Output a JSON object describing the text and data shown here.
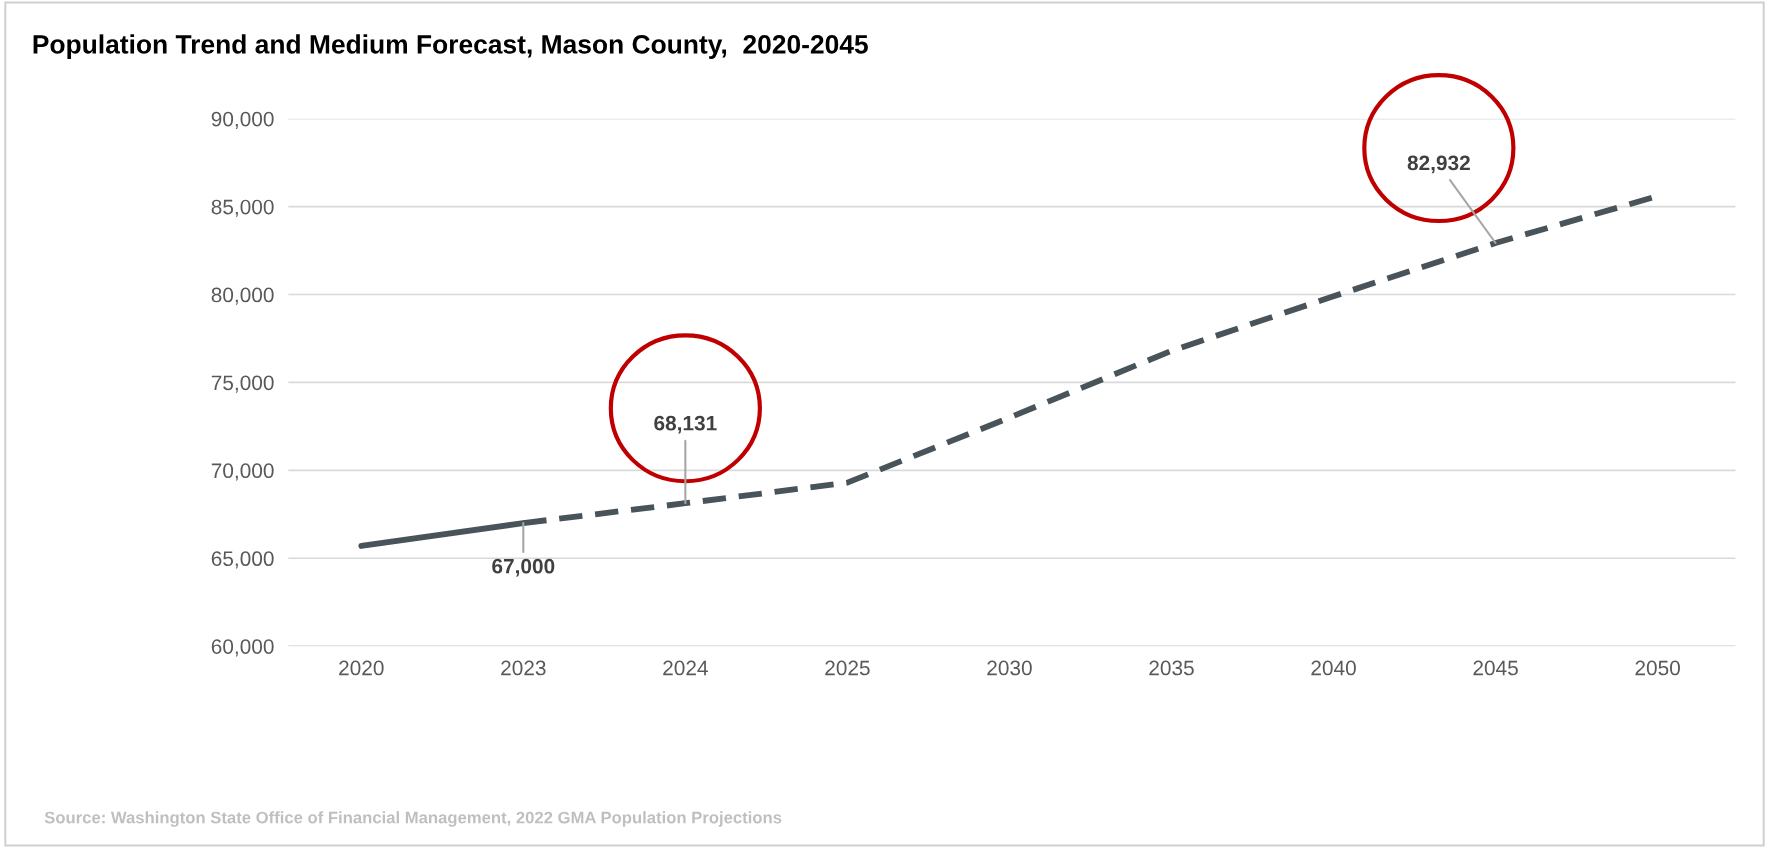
{
  "chart_data": {
    "type": "line",
    "title": "Population Trend and Medium Forecast, Mason County,  2020-2045",
    "categories": [
      "2020",
      "2023",
      "2024",
      "2025",
      "2030",
      "2035",
      "2040",
      "2045",
      "2050"
    ],
    "series": [
      {
        "color": "#49535a",
        "line_style": "solid",
        "values": [
          65700,
          67000,
          null,
          null,
          null,
          null,
          null,
          null,
          null
        ],
        "value_labels": [
          null,
          "67,000",
          null,
          null,
          null,
          null,
          null,
          null,
          null
        ]
      },
      {
        "color": "#49535a",
        "line_style": "dashed",
        "values": [
          null,
          67000,
          68131,
          69300,
          73000,
          76800,
          79900,
          82932,
          85600
        ],
        "value_labels": [
          null,
          null,
          "68,131",
          null,
          null,
          null,
          null,
          "82,932",
          null
        ]
      }
    ],
    "ylim": [
      60000,
      90000
    ],
    "yticks": [
      {
        "value": 60000,
        "label": "60,000"
      },
      {
        "value": 65000,
        "label": "65,000"
      },
      {
        "value": 70000,
        "label": "70,000"
      },
      {
        "value": 75000,
        "label": "75,000"
      },
      {
        "value": 80000,
        "label": "80,000"
      },
      {
        "value": 85000,
        "label": "85,000"
      },
      {
        "value": 90000,
        "label": "90,000"
      }
    ],
    "grid": "y",
    "legend": false,
    "marker": "none",
    "annotations": [
      "Source: Washington State Office of Financial Management, 2022 GMA Population Projections"
    ]
  }
}
